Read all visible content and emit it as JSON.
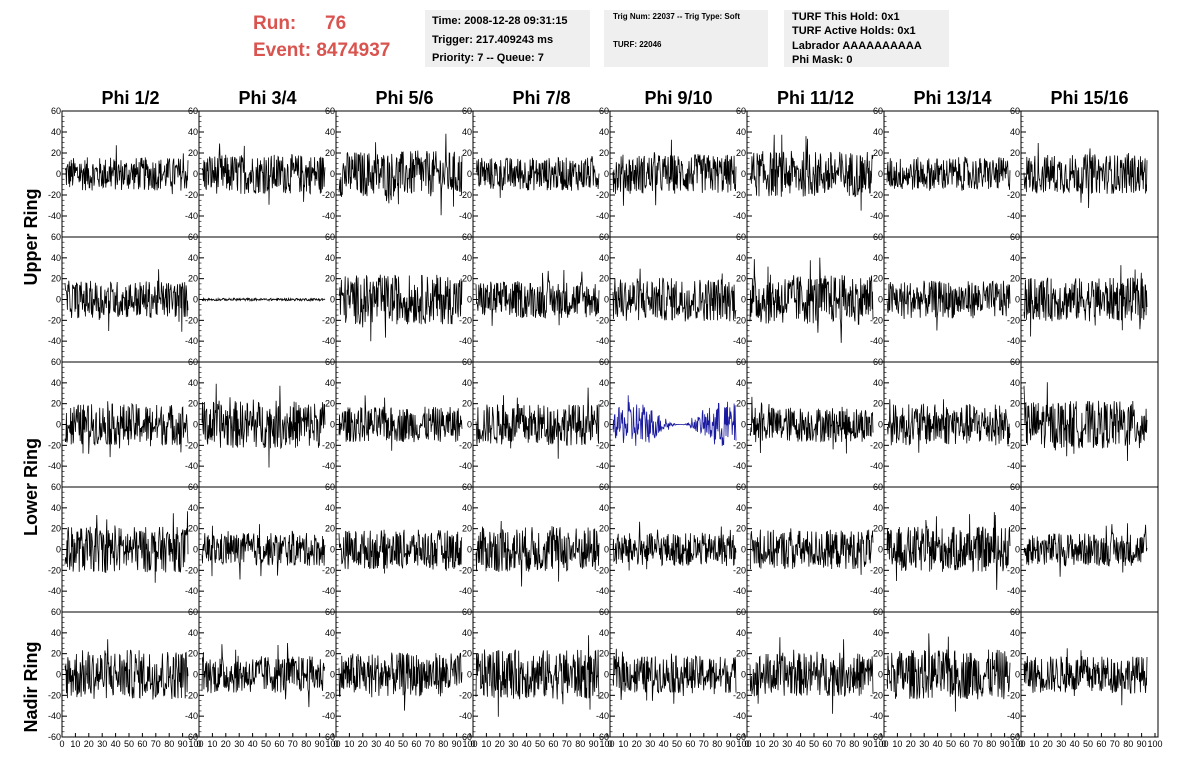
{
  "header": {
    "run_label": "Run:",
    "run_value": "76",
    "event_label": "Event:",
    "event_value": "8474937"
  },
  "time_box": {
    "time": "Time: 2008-12-28 09:31:15",
    "trigger": "Trigger: 217.409243 ms",
    "priority": "Priority: 7 -- Queue: 7"
  },
  "trig_box": {
    "trig": "Trig Num: 22037 -- Trig Type: Soft",
    "turf": "TURF: 22046"
  },
  "turf_box": {
    "this_hold": "TURF This Hold: 0x1",
    "active_holds": "TURF Active Holds: 0x1",
    "labrador": "Labrador AAAAAAAAAA",
    "phi_mask": "Phi Mask: 0"
  },
  "columns": [
    "Phi 1/2",
    "Phi 3/4",
    "Phi 5/6",
    "Phi 7/8",
    "Phi 9/10",
    "Phi 11/12",
    "Phi 13/14",
    "Phi 15/16"
  ],
  "row_labels": [
    "Upper Ring",
    "Lower Ring",
    "Nadir Ring"
  ],
  "y_ticks": [
    "60",
    "40",
    "20",
    "0",
    "-20",
    "-40"
  ],
  "y_ticks_last_row": [
    "60",
    "40",
    "20",
    "0",
    "-20",
    "-40",
    "-60"
  ],
  "x_ticks": [
    "0",
    "10",
    "20",
    "30",
    "40",
    "50",
    "60",
    "70",
    "80",
    "90",
    "100"
  ],
  "y_range": [
    -60,
    60
  ],
  "x_range": [
    0,
    100
  ],
  "highlight": {
    "row": 2,
    "col": 4,
    "color": "#1a1aa0"
  },
  "trace_color": "#000000",
  "flat_trace": {
    "row": 1,
    "col": 1
  }
}
